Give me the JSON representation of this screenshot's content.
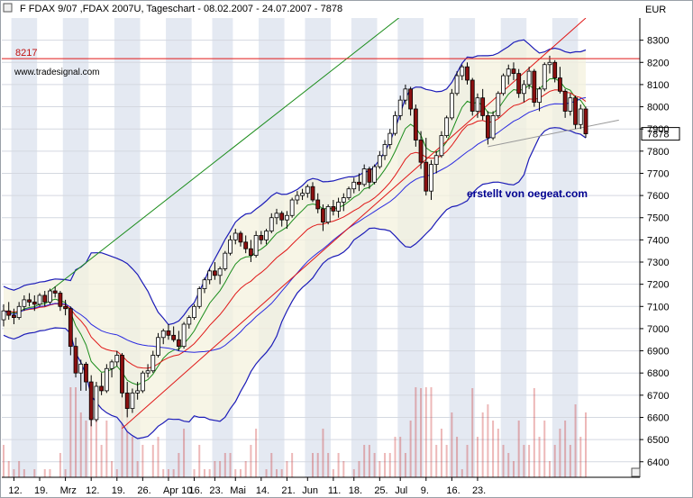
{
  "chart_data": {
    "type": "candlestick",
    "title": "F FDAX 9/07 ,FDAX 2007U, Tageschart - 08.02.2007 - 24.07.2007 - 7878",
    "watermark": "www.tradesignal.com",
    "annotation": "erstellt von oegeat.com",
    "yaxis_unit": "EUR",
    "ylim": [
      6330,
      8400
    ],
    "y_ticks": [
      6400,
      6500,
      6600,
      6700,
      6800,
      6900,
      7000,
      7100,
      7200,
      7300,
      7400,
      7500,
      7600,
      7700,
      7800,
      7900,
      8000,
      8100,
      8200,
      8300
    ],
    "x_tick_labels": [
      "12.",
      "19.",
      "Mrz",
      "12.",
      "19.",
      "26.",
      "Apr 10.",
      "16.",
      "23.",
      "Mai",
      "14.",
      "21.",
      "Jun",
      "11.",
      "18.",
      "25.",
      "Jul",
      "9.",
      "16.",
      "23."
    ],
    "resistance_level": {
      "value": 8217,
      "label": "8217"
    },
    "last_price": {
      "value": 7878,
      "label": "7878"
    },
    "sessions": [
      [
        "2007-02-08",
        7040,
        7110,
        7010,
        7080
      ],
      [
        "2007-02-09",
        7080,
        7120,
        7040,
        7060
      ],
      [
        "2007-02-12",
        7060,
        7090,
        7020,
        7050
      ],
      [
        "2007-02-13",
        7050,
        7120,
        7040,
        7100
      ],
      [
        "2007-02-14",
        7100,
        7150,
        7080,
        7130
      ],
      [
        "2007-02-15",
        7130,
        7160,
        7100,
        7120
      ],
      [
        "2007-02-16",
        7120,
        7150,
        7080,
        7110
      ],
      [
        "2007-02-19",
        7110,
        7160,
        7100,
        7150
      ],
      [
        "2007-02-20",
        7150,
        7170,
        7100,
        7120
      ],
      [
        "2007-02-21",
        7120,
        7180,
        7110,
        7170
      ],
      [
        "2007-02-22",
        7170,
        7190,
        7140,
        7160
      ],
      [
        "2007-02-23",
        7160,
        7170,
        7080,
        7100
      ],
      [
        "2007-02-26",
        7100,
        7130,
        7060,
        7090
      ],
      [
        "2007-02-27",
        7090,
        7100,
        6880,
        6920
      ],
      [
        "2007-02-28",
        6920,
        6960,
        6780,
        6800
      ],
      [
        "2007-03-01",
        6800,
        6860,
        6720,
        6840
      ],
      [
        "2007-03-02",
        6840,
        6850,
        6720,
        6760
      ],
      [
        "2007-03-05",
        6760,
        6790,
        6560,
        6590
      ],
      [
        "2007-03-06",
        6590,
        6760,
        6580,
        6740
      ],
      [
        "2007-03-07",
        6740,
        6800,
        6700,
        6720
      ],
      [
        "2007-03-08",
        6720,
        6840,
        6710,
        6820
      ],
      [
        "2007-03-09",
        6820,
        6860,
        6780,
        6850
      ],
      [
        "2007-03-12",
        6850,
        6900,
        6830,
        6880
      ],
      [
        "2007-03-13",
        6880,
        6890,
        6690,
        6710
      ],
      [
        "2007-03-14",
        6710,
        6760,
        6600,
        6640
      ],
      [
        "2007-03-15",
        6640,
        6730,
        6620,
        6710
      ],
      [
        "2007-03-16",
        6710,
        6760,
        6680,
        6720
      ],
      [
        "2007-03-19",
        6720,
        6810,
        6710,
        6800
      ],
      [
        "2007-03-20",
        6800,
        6840,
        6780,
        6810
      ],
      [
        "2007-03-21",
        6810,
        6900,
        6800,
        6880
      ],
      [
        "2007-03-22",
        6880,
        6980,
        6870,
        6960
      ],
      [
        "2007-03-23",
        6960,
        7000,
        6930,
        6990
      ],
      [
        "2007-03-26",
        6990,
        7020,
        6950,
        6970
      ],
      [
        "2007-03-27",
        6970,
        7010,
        6940,
        6950
      ],
      [
        "2007-03-28",
        6950,
        6990,
        6900,
        6920
      ],
      [
        "2007-03-29",
        6920,
        7030,
        6910,
        7020
      ],
      [
        "2007-03-30",
        7020,
        7060,
        7000,
        7050
      ],
      [
        "2007-04-02",
        7050,
        7110,
        7040,
        7100
      ],
      [
        "2007-04-03",
        7100,
        7190,
        7090,
        7180
      ],
      [
        "2007-04-04",
        7180,
        7230,
        7160,
        7220
      ],
      [
        "2007-04-05",
        7220,
        7270,
        7200,
        7260
      ],
      [
        "2007-04-10",
        7260,
        7300,
        7220,
        7240
      ],
      [
        "2007-04-11",
        7240,
        7280,
        7200,
        7270
      ],
      [
        "2007-04-12",
        7270,
        7350,
        7260,
        7340
      ],
      [
        "2007-04-13",
        7340,
        7420,
        7330,
        7400
      ],
      [
        "2007-04-16",
        7400,
        7450,
        7380,
        7430
      ],
      [
        "2007-04-17",
        7430,
        7440,
        7370,
        7390
      ],
      [
        "2007-04-18",
        7390,
        7420,
        7340,
        7360
      ],
      [
        "2007-04-19",
        7360,
        7400,
        7300,
        7330
      ],
      [
        "2007-04-20",
        7330,
        7440,
        7320,
        7420
      ],
      [
        "2007-04-23",
        7420,
        7440,
        7380,
        7400
      ],
      [
        "2007-04-24",
        7400,
        7450,
        7380,
        7440
      ],
      [
        "2007-04-25",
        7440,
        7520,
        7430,
        7500
      ],
      [
        "2007-04-26",
        7500,
        7540,
        7470,
        7520
      ],
      [
        "2007-04-27",
        7520,
        7530,
        7460,
        7490
      ],
      [
        "2007-04-30",
        7490,
        7530,
        7450,
        7510
      ],
      [
        "2007-05-02",
        7510,
        7590,
        7500,
        7580
      ],
      [
        "2007-05-03",
        7580,
        7620,
        7560,
        7600
      ],
      [
        "2007-05-04",
        7600,
        7630,
        7580,
        7610
      ],
      [
        "2007-05-07",
        7610,
        7650,
        7590,
        7640
      ],
      [
        "2007-05-08",
        7640,
        7660,
        7570,
        7580
      ],
      [
        "2007-05-09",
        7580,
        7610,
        7520,
        7540
      ],
      [
        "2007-05-10",
        7540,
        7560,
        7440,
        7480
      ],
      [
        "2007-05-11",
        7480,
        7560,
        7470,
        7550
      ],
      [
        "2007-05-14",
        7550,
        7580,
        7510,
        7530
      ],
      [
        "2007-05-15",
        7530,
        7590,
        7500,
        7570
      ],
      [
        "2007-05-16",
        7570,
        7610,
        7530,
        7590
      ],
      [
        "2007-05-18",
        7590,
        7640,
        7580,
        7630
      ],
      [
        "2007-05-21",
        7630,
        7680,
        7610,
        7660
      ],
      [
        "2007-05-22",
        7660,
        7700,
        7620,
        7650
      ],
      [
        "2007-05-23",
        7650,
        7740,
        7640,
        7720
      ],
      [
        "2007-05-24",
        7720,
        7730,
        7630,
        7660
      ],
      [
        "2007-05-25",
        7660,
        7740,
        7650,
        7730
      ],
      [
        "2007-05-29",
        7730,
        7800,
        7720,
        7780
      ],
      [
        "2007-05-30",
        7780,
        7850,
        7760,
        7830
      ],
      [
        "2007-05-31",
        7830,
        7900,
        7810,
        7880
      ],
      [
        "2007-06-01",
        7880,
        7980,
        7870,
        7960
      ],
      [
        "2007-06-04",
        7960,
        8050,
        7940,
        8030
      ],
      [
        "2007-06-05",
        8030,
        8100,
        8010,
        8080
      ],
      [
        "2007-06-06",
        8080,
        8090,
        7960,
        7990
      ],
      [
        "2007-06-07",
        7990,
        8010,
        7820,
        7850
      ],
      [
        "2007-06-08",
        7850,
        7890,
        7720,
        7750
      ],
      [
        "2007-06-11",
        7750,
        7860,
        7600,
        7620
      ],
      [
        "2007-06-12",
        7620,
        7760,
        7580,
        7740
      ],
      [
        "2007-06-13",
        7740,
        7800,
        7700,
        7780
      ],
      [
        "2007-06-14",
        7780,
        7890,
        7770,
        7870
      ],
      [
        "2007-06-15",
        7870,
        7960,
        7860,
        7950
      ],
      [
        "2007-06-18",
        7950,
        8080,
        7940,
        8060
      ],
      [
        "2007-06-19",
        8060,
        8160,
        8050,
        8140
      ],
      [
        "2007-06-20",
        8140,
        8190,
        8120,
        8180
      ],
      [
        "2007-06-21",
        8180,
        8200,
        8100,
        8120
      ],
      [
        "2007-06-22",
        8120,
        8130,
        7960,
        7980
      ],
      [
        "2007-06-25",
        7980,
        8060,
        7950,
        8040
      ],
      [
        "2007-06-26",
        8040,
        8080,
        7940,
        7960
      ],
      [
        "2007-06-27",
        7960,
        7980,
        7830,
        7860
      ],
      [
        "2007-06-28",
        7860,
        7980,
        7850,
        7960
      ],
      [
        "2007-06-29",
        7960,
        8070,
        7950,
        8060
      ],
      [
        "2007-07-02",
        8060,
        8150,
        8050,
        8140
      ],
      [
        "2007-07-03",
        8140,
        8190,
        8100,
        8170
      ],
      [
        "2007-07-04",
        8170,
        8200,
        8120,
        8150
      ],
      [
        "2007-07-05",
        8150,
        8170,
        8040,
        8060
      ],
      [
        "2007-07-06",
        8060,
        8120,
        8020,
        8100
      ],
      [
        "2007-07-09",
        8100,
        8180,
        8080,
        8160
      ],
      [
        "2007-07-10",
        8160,
        8170,
        8000,
        8020
      ],
      [
        "2007-07-11",
        8020,
        8090,
        7980,
        8080
      ],
      [
        "2007-07-12",
        8080,
        8200,
        8070,
        8190
      ],
      [
        "2007-07-13",
        8190,
        8230,
        8150,
        8200
      ],
      [
        "2007-07-16",
        8200,
        8210,
        8110,
        8130
      ],
      [
        "2007-07-17",
        8130,
        8180,
        8060,
        8070
      ],
      [
        "2007-07-18",
        8070,
        8080,
        7950,
        7980
      ],
      [
        "2007-07-19",
        7980,
        8060,
        7960,
        8040
      ],
      [
        "2007-07-20",
        8040,
        8050,
        7900,
        7920
      ],
      [
        "2007-07-23",
        7920,
        8010,
        7900,
        7990
      ],
      [
        "2007-07-24",
        7990,
        8000,
        7860,
        7878
      ]
    ],
    "trendlines": [
      {
        "color": "#1a8c1a",
        "from": [
          "2007-02-21",
          7170
        ],
        "to": [
          "2007-06-22",
          8660
        ]
      },
      {
        "color": "#e01818",
        "from": [
          "2007-03-13",
          6550
        ],
        "to": [
          "2007-07-24",
          8400
        ]
      },
      {
        "color": "#999999",
        "from": [
          "2007-06-27",
          7820
        ],
        "to": [
          "2007-08-02",
          7940
        ]
      }
    ],
    "indicators": {
      "bollinger_color": "#1c1cb8",
      "moving_average_colors": [
        "#1a8c1a",
        "#e01818",
        "#2a2ae0"
      ]
    },
    "colors": {
      "bull_body": "#ffffff",
      "bear_body": "#8b1010",
      "wick": "#000000",
      "volume": "#cc3333",
      "background_bands": "#e4e9f2"
    }
  }
}
